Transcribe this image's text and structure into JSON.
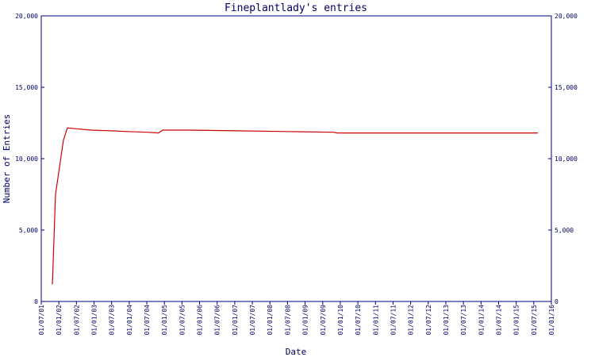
{
  "chart_data": {
    "type": "line",
    "title": "Fineplantlady's entries",
    "xlabel": "Date",
    "ylabel": "Number of Entries",
    "x": [
      "25/10/01",
      "27/11/01",
      "18/02/02",
      "28/03/02",
      "20/06/02",
      "01/12/02",
      "25/06/03",
      "07/12/03",
      "01/07/04",
      "01/11/04",
      "13/12/04",
      "16/08/05",
      "04/02/07",
      "13/06/08",
      "20/10/09",
      "01/12/09",
      "13/08/15"
    ],
    "series": [
      {
        "name": "Entries",
        "color": "#cc0000",
        "values": [
          1200,
          7500,
          11300,
          12150,
          12100,
          12000,
          11950,
          11900,
          11850,
          11800,
          12000,
          12000,
          11950,
          11900,
          11850,
          11800,
          11800
        ]
      }
    ],
    "xlim": [
      "01/07/01",
      "01/01/16"
    ],
    "xticks": [
      "01/07/01",
      "01/01/02",
      "01/07/02",
      "01/01/03",
      "01/07/03",
      "01/01/04",
      "01/07/04",
      "01/01/05",
      "01/07/05",
      "01/01/06",
      "01/07/06",
      "01/01/07",
      "01/07/07",
      "01/01/08",
      "01/07/08",
      "01/01/09",
      "01/07/09",
      "01/01/10",
      "01/07/10",
      "01/01/11",
      "01/07/11",
      "01/01/12",
      "01/07/12",
      "01/01/13",
      "01/07/13",
      "01/01/14",
      "01/07/14",
      "01/01/15",
      "01/07/15",
      "01/01/16"
    ],
    "ylim": [
      0,
      20000
    ],
    "yticks": [
      0,
      {
        "value": 5000,
        "label": "5,000"
      },
      {
        "value": 10000,
        "label": "10,000"
      },
      {
        "value": 15000,
        "label": "15,000"
      },
      {
        "value": 20000,
        "label": "20,000"
      }
    ],
    "y2lim": [
      0,
      20000
    ],
    "y2ticks": [
      0,
      {
        "value": 5000,
        "label": "5,000"
      },
      {
        "value": 10000,
        "label": "10,000"
      },
      {
        "value": 15000,
        "label": "15,000"
      },
      {
        "value": 20000,
        "label": "20,000"
      }
    ]
  }
}
